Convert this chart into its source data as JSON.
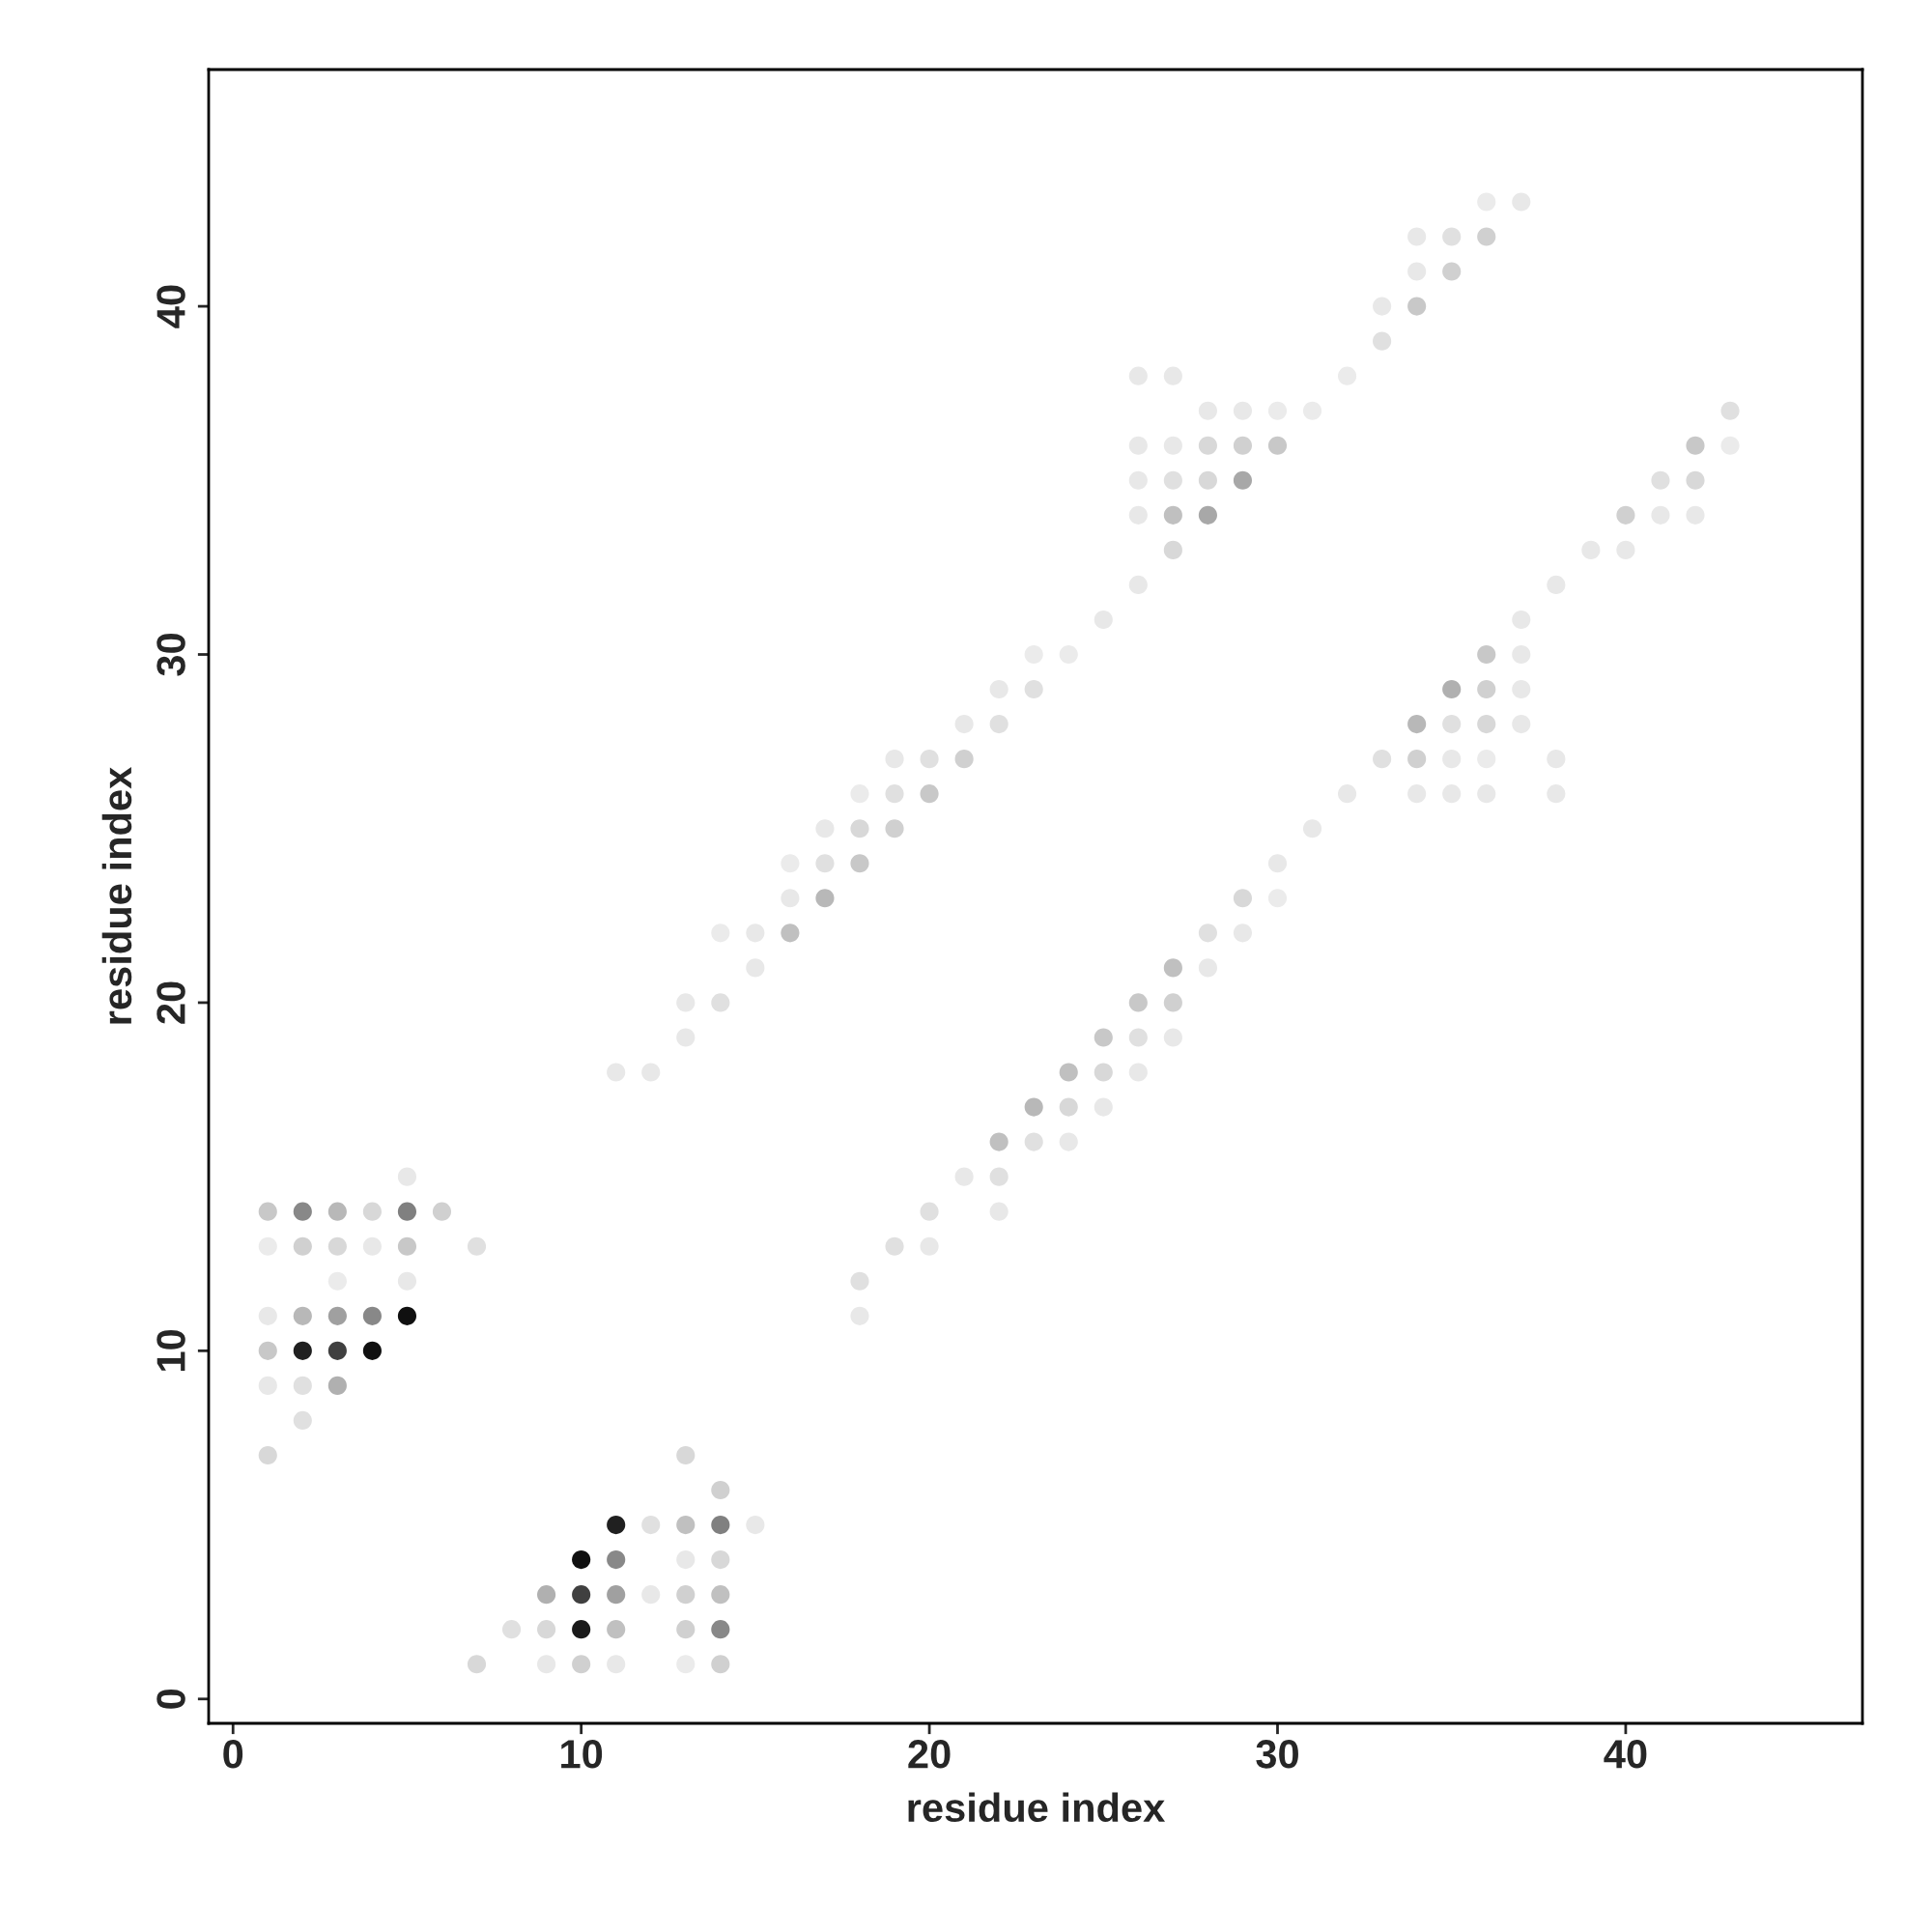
{
  "chart_data": {
    "type": "scatter",
    "xlabel": "residue index",
    "ylabel": "residue index",
    "xlim": [
      -0.7,
      46.8
    ],
    "ylim": [
      -0.7,
      46.8
    ],
    "xticks": [
      0,
      10,
      20,
      30,
      40
    ],
    "yticks": [
      0,
      10,
      20,
      30,
      40
    ],
    "grid": false,
    "legend": false,
    "marker": "circle",
    "series": [
      {
        "x": [
          7,
          9,
          10,
          11,
          13,
          14,
          8,
          9,
          10,
          11,
          13,
          14,
          9,
          10,
          11,
          12,
          13,
          14,
          10,
          11,
          13,
          14,
          11,
          12,
          13,
          14,
          15,
          14,
          1,
          13,
          2,
          1,
          2,
          3,
          1,
          2,
          3,
          4,
          1,
          2,
          3,
          4,
          5,
          18,
          3,
          5,
          18,
          1,
          2,
          3,
          4,
          5,
          7,
          19,
          20,
          1,
          2,
          3,
          4,
          5,
          6,
          20,
          22,
          5,
          21,
          22,
          22,
          23,
          24,
          23,
          24,
          25,
          11,
          12,
          24,
          25,
          26,
          13,
          25,
          26,
          27,
          13,
          14,
          26,
          27,
          15,
          27,
          28,
          14,
          15,
          16,
          28,
          29,
          16,
          17,
          29,
          30,
          16,
          17,
          18,
          30,
          17,
          18,
          19,
          31,
          18,
          19,
          20,
          32,
          34,
          35,
          36,
          38,
          19,
          20,
          21,
          33,
          34,
          35,
          36,
          38,
          21,
          22,
          34,
          35,
          36,
          37,
          22,
          23,
          35,
          36,
          37,
          23,
          24,
          36,
          37,
          25,
          37,
          26,
          38,
          27,
          39,
          40,
          26,
          27,
          28,
          40,
          41,
          42,
          26,
          27,
          28,
          29,
          41,
          42,
          26,
          27,
          28,
          29,
          30,
          42,
          43,
          28,
          29,
          30,
          31,
          43,
          26,
          27,
          32,
          33,
          33,
          34,
          34,
          35,
          34,
          35,
          36,
          36,
          37
        ],
        "values": [
          1,
          1,
          1,
          1,
          1,
          1,
          2,
          2,
          2,
          2,
          2,
          2,
          3,
          3,
          3,
          3,
          3,
          3,
          4,
          4,
          4,
          4,
          5,
          5,
          5,
          5,
          5,
          6,
          7,
          7,
          8,
          9,
          9,
          9,
          10,
          10,
          10,
          10,
          11,
          11,
          11,
          11,
          11,
          11,
          12,
          12,
          12,
          13,
          13,
          13,
          13,
          13,
          13,
          13,
          13,
          14,
          14,
          14,
          14,
          14,
          14,
          14,
          14,
          15,
          15,
          15,
          16,
          16,
          16,
          17,
          17,
          17,
          18,
          18,
          18,
          18,
          18,
          19,
          19,
          19,
          19,
          20,
          20,
          20,
          20,
          21,
          21,
          21,
          22,
          22,
          22,
          22,
          22,
          23,
          23,
          23,
          23,
          24,
          24,
          24,
          24,
          25,
          25,
          25,
          25,
          26,
          26,
          26,
          26,
          26,
          26,
          26,
          26,
          27,
          27,
          27,
          27,
          27,
          27,
          27,
          27,
          28,
          28,
          28,
          28,
          28,
          28,
          29,
          29,
          29,
          29,
          29,
          30,
          30,
          30,
          30,
          31,
          31,
          32,
          32,
          33,
          33,
          33,
          34,
          34,
          34,
          34,
          34,
          34,
          35,
          35,
          35,
          35,
          35,
          35,
          36,
          36,
          36,
          36,
          36,
          36,
          36,
          37,
          37,
          37,
          37,
          37,
          38,
          38,
          38,
          39,
          40,
          40,
          41,
          41,
          42,
          42,
          42,
          43,
          43
        ],
        "colors": [
          "#d8d8d8",
          "#e8e8e8",
          "#d0d0d0",
          "#e8e8e8",
          "#ebebeb",
          "#d0d0d0",
          "#e0e0e0",
          "#d8d8d8",
          "#1a1a1a",
          "#c0c0c0",
          "#d0d0d0",
          "#888888",
          "#b0b0b0",
          "#404040",
          "#a0a0a0",
          "#e8e8e8",
          "#d0d0d0",
          "#c0c0c0",
          "#101010",
          "#888888",
          "#e8e8e8",
          "#d8d8d8",
          "#202020",
          "#e0e0e0",
          "#c0c0c0",
          "#808080",
          "#e8e8e8",
          "#d0d0d0",
          "#d8d8d8",
          "#d8d8d8",
          "#e0e0e0",
          "#e8e8e8",
          "#e0e0e0",
          "#b0b0b0",
          "#c8c8c8",
          "#202020",
          "#404040",
          "#101010",
          "#e8e8e8",
          "#b8b8b8",
          "#a0a0a0",
          "#888888",
          "#101010",
          "#e8e8e8",
          "#ebebeb",
          "#e8e8e8",
          "#e0e0e0",
          "#ebebeb",
          "#d0d0d0",
          "#d8d8d8",
          "#e8e8e8",
          "#c8c8c8",
          "#e0e0e0",
          "#e0e0e0",
          "#e8e8e8",
          "#c8c8c8",
          "#888888",
          "#b8b8b8",
          "#d8d8d8",
          "#808080",
          "#d0d0d0",
          "#e0e0e0",
          "#e8e8e8",
          "#e8e8e8",
          "#e8e8e8",
          "#e0e0e0",
          "#c0c0c0",
          "#e0e0e0",
          "#e8e8e8",
          "#b8b8b8",
          "#d8d8d8",
          "#e8e8e8",
          "#e8e8e8",
          "#e8e8e8",
          "#c0c0c0",
          "#d8d8d8",
          "#e8e8e8",
          "#e8e8e8",
          "#c8c8c8",
          "#e0e0e0",
          "#e8e8e8",
          "#e8e8e8",
          "#e0e0e0",
          "#c8c8c8",
          "#d0d0d0",
          "#e8e8e8",
          "#c0c0c0",
          "#e8e8e8",
          "#ebebeb",
          "#e8e8e8",
          "#c0c0c0",
          "#e0e0e0",
          "#e8e8e8",
          "#e8e8e8",
          "#b8b8b8",
          "#d8d8d8",
          "#ebebeb",
          "#ebebeb",
          "#e0e0e0",
          "#c8c8c8",
          "#e8e8e8",
          "#e8e8e8",
          "#d8d8d8",
          "#d0d0d0",
          "#e8e8e8",
          "#ebebeb",
          "#e0e0e0",
          "#c8c8c8",
          "#e8e8e8",
          "#e8e8e8",
          "#e8e8e8",
          "#e8e8e8",
          "#e8e8e8",
          "#e8e8e8",
          "#e0e0e0",
          "#d0d0d0",
          "#e0e0e0",
          "#d0d0d0",
          "#e8e8e8",
          "#ebebeb",
          "#e8e8e8",
          "#e8e8e8",
          "#e0e0e0",
          "#b8b8b8",
          "#e0e0e0",
          "#d8d8d8",
          "#e8e8e8",
          "#e8e8e8",
          "#e0e0e0",
          "#b0b0b0",
          "#d0d0d0",
          "#e8e8e8",
          "#ebebeb",
          "#ebebeb",
          "#c8c8c8",
          "#e8e8e8",
          "#e8e8e8",
          "#e8e8e8",
          "#e8e8e8",
          "#e8e8e8",
          "#d8d8d8",
          "#e8e8e8",
          "#e8e8e8",
          "#e8e8e8",
          "#c0c0c0",
          "#a8a8a8",
          "#d0d0d0",
          "#e8e8e8",
          "#e8e8e8",
          "#e8e8e8",
          "#e0e0e0",
          "#d8d8d8",
          "#a8a8a8",
          "#e0e0e0",
          "#d8d8d8",
          "#e8e8e8",
          "#e8e8e8",
          "#d8d8d8",
          "#d0d0d0",
          "#c8c8c8",
          "#c8c8c8",
          "#ebebeb",
          "#e8e8e8",
          "#e8e8e8",
          "#ebebeb",
          "#ebebeb",
          "#e0e0e0",
          "#e8e8e8",
          "#e8e8e8",
          "#ebebeb",
          "#e0e0e0",
          "#e8e8e8",
          "#c8c8c8",
          "#e8e8e8",
          "#d0d0d0",
          "#e8e8e8",
          "#e0e0e0",
          "#d0d0d0",
          "#ebebeb",
          "#e8e8e8"
        ]
      }
    ]
  }
}
